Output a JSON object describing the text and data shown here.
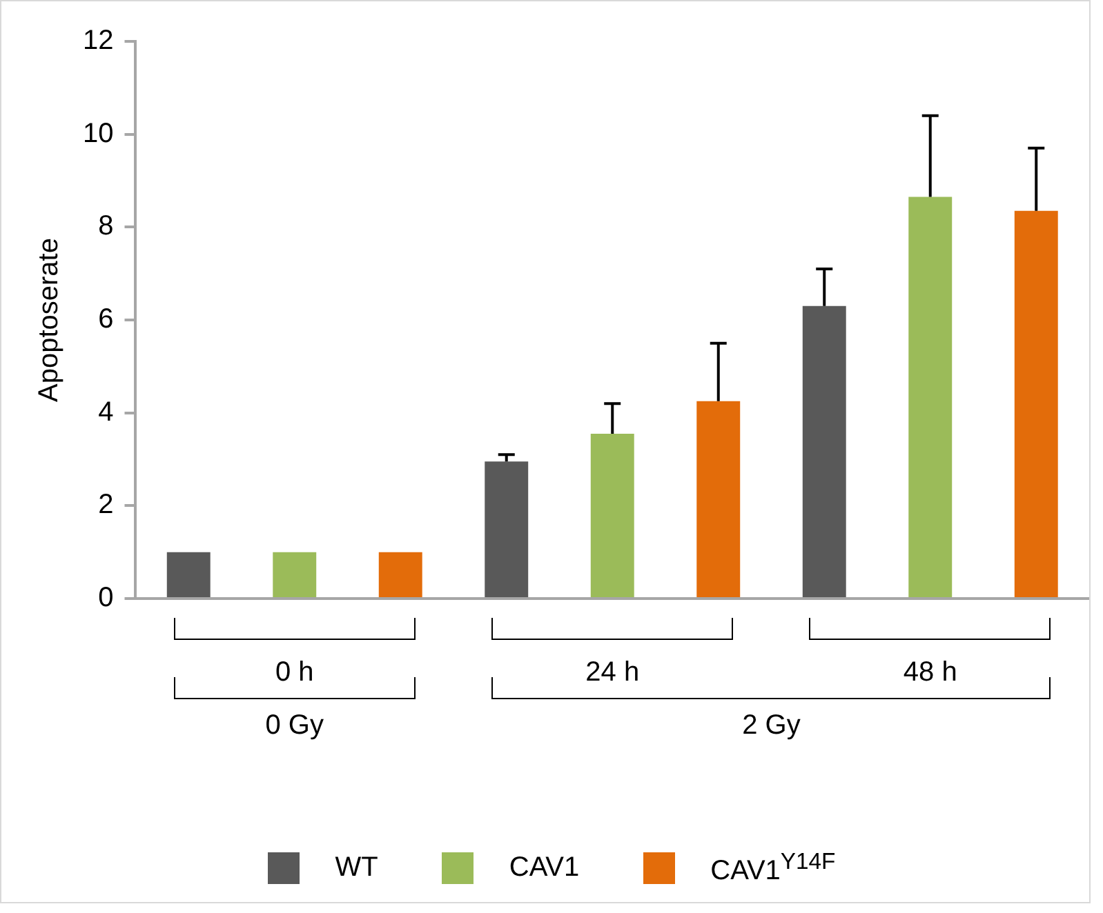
{
  "chart_data": {
    "type": "bar",
    "ylabel": "Apoptoserate",
    "categories": [
      "0 h",
      "24 h",
      "48 h"
    ],
    "series": [
      {
        "name": "WT",
        "color": "#595959",
        "values": [
          1,
          2.95,
          6.3
        ],
        "errors": [
          null,
          [
            2.95,
            3.1
          ],
          [
            6.3,
            7.1
          ]
        ]
      },
      {
        "name": "CAV1",
        "color": "#9bbb59",
        "values": [
          1,
          3.55,
          8.65
        ],
        "errors": [
          null,
          [
            3.55,
            4.2
          ],
          [
            8.65,
            10.4
          ]
        ]
      },
      {
        "name": "CAV1$^{Y14F}$",
        "color": "#e36c0a",
        "values": [
          1,
          4.25,
          8.35
        ],
        "errors": [
          null,
          [
            4.25,
            5.5
          ],
          [
            8.35,
            9.7
          ]
        ]
      }
    ],
    "ylim": [
      0,
      12
    ],
    "yticks": [
      0,
      2,
      4,
      6,
      8,
      10,
      12
    ],
    "grid": false,
    "legend": "bottom",
    "annotations": [
      "0 Gy",
      "2 Gy"
    ]
  }
}
